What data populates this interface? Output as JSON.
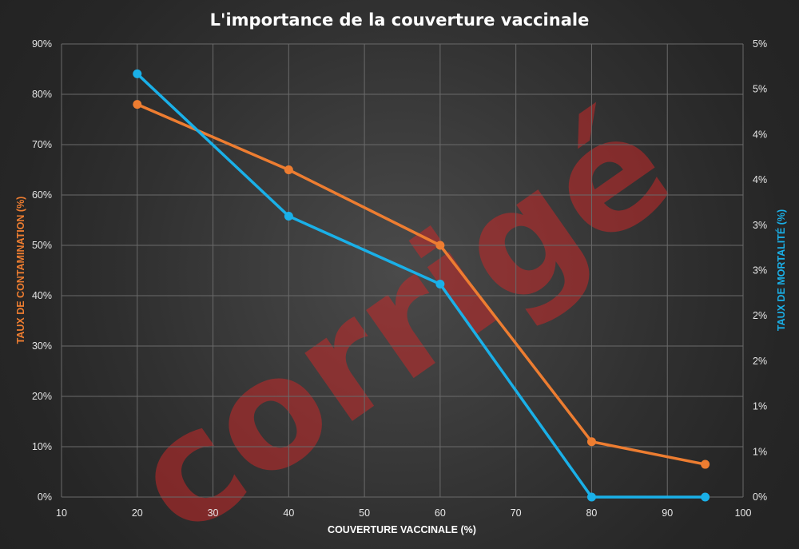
{
  "chart_data": {
    "type": "line",
    "title": "L'importance de la couverture vaccinale",
    "watermark": "corrigé",
    "xlabel": "COUVERTURE VACCINALE (%)",
    "ylabel_left": "TAUX DE CONTAMINATION (%)",
    "ylabel_right": "TAUX DE MORTALITÉ (%)",
    "xlim": [
      10,
      100
    ],
    "x_ticks": [
      10,
      20,
      30,
      40,
      50,
      60,
      70,
      80,
      90,
      100
    ],
    "ylim_left": [
      0,
      90
    ],
    "y_left_ticks": [
      "0%",
      "10%",
      "20%",
      "30%",
      "40%",
      "50%",
      "60%",
      "70%",
      "80%",
      "90%"
    ],
    "ylim_right": [
      0,
      5
    ],
    "y_right_ticks": [
      "0%",
      "1%",
      "1%",
      "2%",
      "2%",
      "3%",
      "3%",
      "4%",
      "4%",
      "5%",
      "5%"
    ],
    "grid": true,
    "series": [
      {
        "axis": "left",
        "color": "#ed7d31",
        "x": [
          20,
          40,
          60,
          80,
          95
        ],
        "values": [
          78,
          65,
          50,
          11,
          6.5
        ]
      },
      {
        "axis": "right",
        "color": "#1ab0e8",
        "x": [
          20,
          40,
          60,
          80,
          95
        ],
        "values": [
          4.67,
          3.1,
          2.35,
          0,
          0
        ]
      }
    ],
    "colors": {
      "left_axis_title": "#ed7d31",
      "right_axis_title": "#1ab0e8"
    }
  }
}
